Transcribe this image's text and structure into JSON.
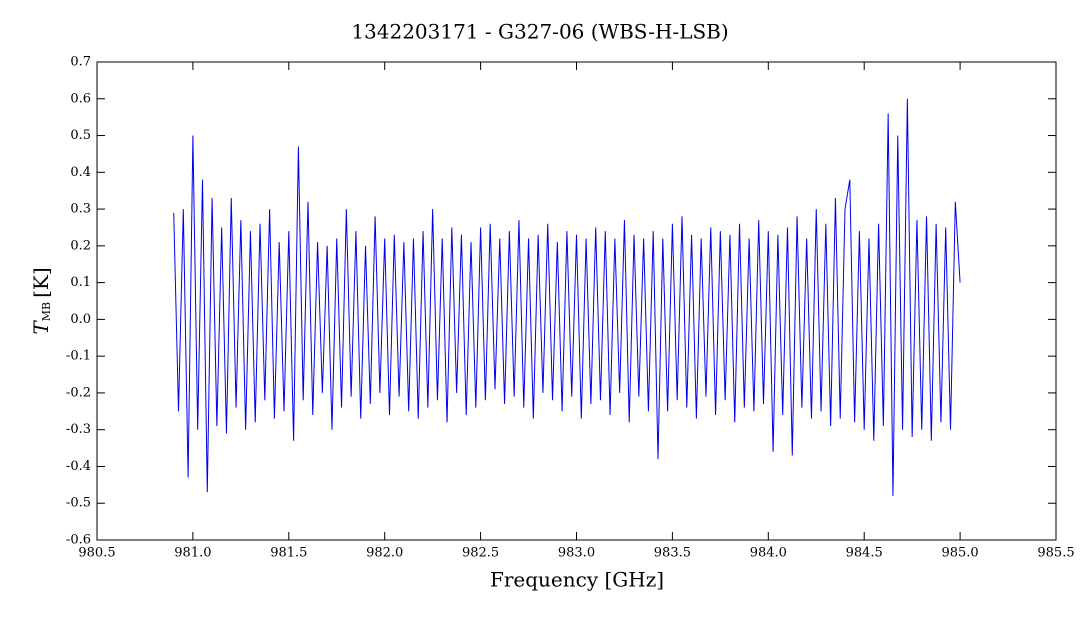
{
  "chart_data": {
    "type": "line",
    "title": "1342203171 - G327-06 (WBS-H-LSB)",
    "xlabel": "Frequency [GHz]",
    "ylabel": {
      "symbol": "T",
      "subscript": "MB",
      "unit": "[K]"
    },
    "xlim": [
      980.5,
      985.5
    ],
    "ylim": [
      -0.6,
      0.7
    ],
    "xticks": [
      980.5,
      {
        "value": 981,
        "label": "981.0"
      },
      981.5,
      {
        "value": 982,
        "label": "982.0"
      },
      982.5,
      {
        "value": 983,
        "label": "983.0"
      },
      983.5,
      {
        "value": 984,
        "label": "984.0"
      },
      984.5,
      {
        "value": 985,
        "label": "985.0"
      },
      985.5
    ],
    "yticks": [
      -0.6,
      -0.5,
      -0.4,
      -0.3,
      -0.2,
      -0.1,
      {
        "value": 0,
        "label": "0.0"
      },
      0.1,
      0.2,
      0.3,
      0.4,
      0.5,
      0.6,
      0.7
    ],
    "x": [
      980.9,
      980.925,
      980.95,
      980.975,
      981.0,
      981.025,
      981.05,
      981.075,
      981.1,
      981.125,
      981.15,
      981.175,
      981.2,
      981.225,
      981.25,
      981.275,
      981.3,
      981.325,
      981.35,
      981.375,
      981.4,
      981.425,
      981.45,
      981.475,
      981.5,
      981.525,
      981.55,
      981.575,
      981.6,
      981.625,
      981.65,
      981.675,
      981.7,
      981.725,
      981.75,
      981.775,
      981.8,
      981.825,
      981.85,
      981.875,
      981.9,
      981.925,
      981.95,
      981.975,
      982.0,
      982.025,
      982.05,
      982.075,
      982.1,
      982.125,
      982.15,
      982.175,
      982.2,
      982.225,
      982.25,
      982.275,
      982.3,
      982.325,
      982.35,
      982.375,
      982.4,
      982.425,
      982.45,
      982.475,
      982.5,
      982.525,
      982.55,
      982.575,
      982.6,
      982.625,
      982.65,
      982.675,
      982.7,
      982.725,
      982.75,
      982.775,
      982.8,
      982.825,
      982.85,
      982.875,
      982.9,
      982.925,
      982.95,
      982.975,
      983.0,
      983.025,
      983.05,
      983.075,
      983.1,
      983.125,
      983.15,
      983.175,
      983.2,
      983.225,
      983.25,
      983.275,
      983.3,
      983.325,
      983.35,
      983.375,
      983.4,
      983.425,
      983.45,
      983.475,
      983.5,
      983.525,
      983.55,
      983.575,
      983.6,
      983.625,
      983.65,
      983.675,
      983.7,
      983.725,
      983.75,
      983.775,
      983.8,
      983.825,
      983.85,
      983.875,
      983.9,
      983.925,
      983.95,
      983.975,
      984.0,
      984.025,
      984.05,
      984.075,
      984.1,
      984.125,
      984.15,
      984.175,
      984.2,
      984.225,
      984.25,
      984.275,
      984.3,
      984.325,
      984.35,
      984.375,
      984.4,
      984.425,
      984.45,
      984.475,
      984.5,
      984.525,
      984.55,
      984.575,
      984.6,
      984.625,
      984.65,
      984.675,
      984.7,
      984.725,
      984.75,
      984.775,
      984.8,
      984.825,
      984.85,
      984.875,
      984.9,
      984.925,
      984.95,
      984.975,
      985.0
    ],
    "series": [
      {
        "color": "#0000ee",
        "values": [
          0.29,
          -0.25,
          0.3,
          -0.43,
          0.5,
          -0.3,
          0.38,
          -0.47,
          0.33,
          -0.29,
          0.25,
          -0.31,
          0.33,
          -0.24,
          0.27,
          -0.3,
          0.24,
          -0.28,
          0.26,
          -0.22,
          0.3,
          -0.27,
          0.21,
          -0.25,
          0.24,
          -0.33,
          0.47,
          -0.22,
          0.32,
          -0.26,
          0.21,
          -0.2,
          0.2,
          -0.3,
          0.22,
          -0.24,
          0.3,
          -0.21,
          0.24,
          -0.27,
          0.2,
          -0.23,
          0.28,
          -0.2,
          0.22,
          -0.26,
          0.23,
          -0.21,
          0.21,
          -0.25,
          0.22,
          -0.27,
          0.24,
          -0.24,
          0.3,
          -0.22,
          0.22,
          -0.28,
          0.25,
          -0.2,
          0.23,
          -0.26,
          0.21,
          -0.24,
          0.25,
          -0.22,
          0.26,
          -0.19,
          0.22,
          -0.23,
          0.24,
          -0.21,
          0.27,
          -0.24,
          0.22,
          -0.27,
          0.23,
          -0.2,
          0.26,
          -0.22,
          0.21,
          -0.25,
          0.24,
          -0.21,
          0.23,
          -0.27,
          0.22,
          -0.23,
          0.25,
          -0.22,
          0.24,
          -0.26,
          0.22,
          -0.2,
          0.27,
          -0.28,
          0.23,
          -0.21,
          0.22,
          -0.25,
          0.24,
          -0.38,
          0.22,
          -0.25,
          0.26,
          -0.22,
          0.28,
          -0.24,
          0.23,
          -0.27,
          0.22,
          -0.21,
          0.25,
          -0.26,
          0.24,
          -0.22,
          0.23,
          -0.28,
          0.26,
          -0.24,
          0.22,
          -0.25,
          0.27,
          -0.23,
          0.24,
          -0.36,
          0.23,
          -0.26,
          0.25,
          -0.37,
          0.28,
          -0.24,
          0.22,
          -0.27,
          0.3,
          -0.25,
          0.26,
          -0.29,
          0.33,
          -0.27,
          0.3,
          0.38,
          -0.28,
          0.24,
          -0.3,
          0.22,
          -0.33,
          0.26,
          -0.29,
          0.56,
          -0.48,
          0.5,
          -0.3,
          0.6,
          -0.32,
          0.27,
          -0.3,
          0.28,
          -0.33,
          0.26,
          -0.28,
          0.25,
          -0.3,
          0.32,
          0.1
        ]
      }
    ]
  }
}
